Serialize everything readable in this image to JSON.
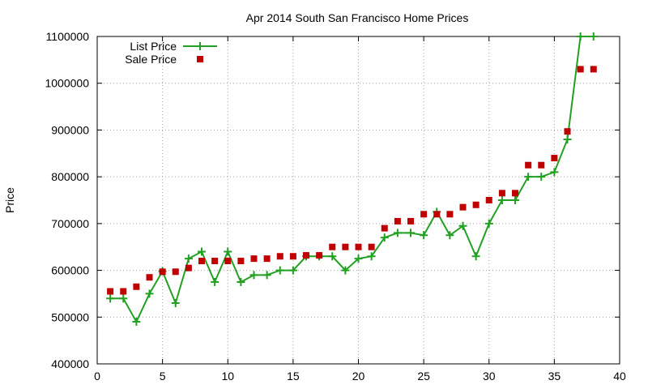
{
  "chart_data": {
    "type": "line",
    "title": "Apr 2014 South San Francisco Home Prices",
    "xlabel": "",
    "ylabel": "Price",
    "xlim": [
      0,
      40
    ],
    "ylim": [
      400000,
      1100000
    ],
    "x_ticks": [
      0,
      5,
      10,
      15,
      20,
      25,
      30,
      35,
      40
    ],
    "y_ticks": [
      400000,
      500000,
      600000,
      700000,
      800000,
      900000,
      1000000,
      1100000
    ],
    "grid": true,
    "legend_position": "top-left",
    "series": [
      {
        "name": "List Price",
        "style": "line-plus",
        "color": "#22a022",
        "x": [
          1,
          2,
          3,
          4,
          5,
          6,
          7,
          8,
          9,
          10,
          11,
          12,
          13,
          14,
          15,
          16,
          17,
          18,
          19,
          20,
          21,
          22,
          23,
          24,
          25,
          26,
          27,
          28,
          29,
          30,
          31,
          32,
          33,
          34,
          35,
          36,
          37,
          38
        ],
        "y": [
          540000,
          540000,
          490000,
          550000,
          598000,
          530000,
          625000,
          640000,
          575000,
          640000,
          575000,
          590000,
          590000,
          600000,
          600000,
          630000,
          630000,
          630000,
          600000,
          625000,
          630000,
          670000,
          680000,
          680000,
          675000,
          725000,
          675000,
          695000,
          630000,
          700000,
          750000,
          750000,
          800000,
          800000,
          810000,
          880000,
          1100000,
          1100000
        ]
      },
      {
        "name": "Sale Price",
        "style": "square",
        "color": "#c00000",
        "x": [
          1,
          2,
          3,
          4,
          5,
          6,
          7,
          8,
          9,
          10,
          11,
          12,
          13,
          14,
          15,
          16,
          17,
          18,
          19,
          20,
          21,
          22,
          23,
          24,
          25,
          26,
          27,
          28,
          29,
          30,
          31,
          32,
          33,
          34,
          35,
          36,
          37,
          38
        ],
        "y": [
          555000,
          555000,
          565000,
          585000,
          597000,
          597000,
          605000,
          620000,
          620000,
          620000,
          620000,
          625000,
          625000,
          630000,
          630000,
          632000,
          632000,
          650000,
          650000,
          650000,
          650000,
          690000,
          705000,
          705000,
          720000,
          720000,
          720000,
          735000,
          740000,
          750000,
          765000,
          765000,
          825000,
          825000,
          840000,
          897000,
          1030000,
          1030000
        ]
      }
    ]
  }
}
